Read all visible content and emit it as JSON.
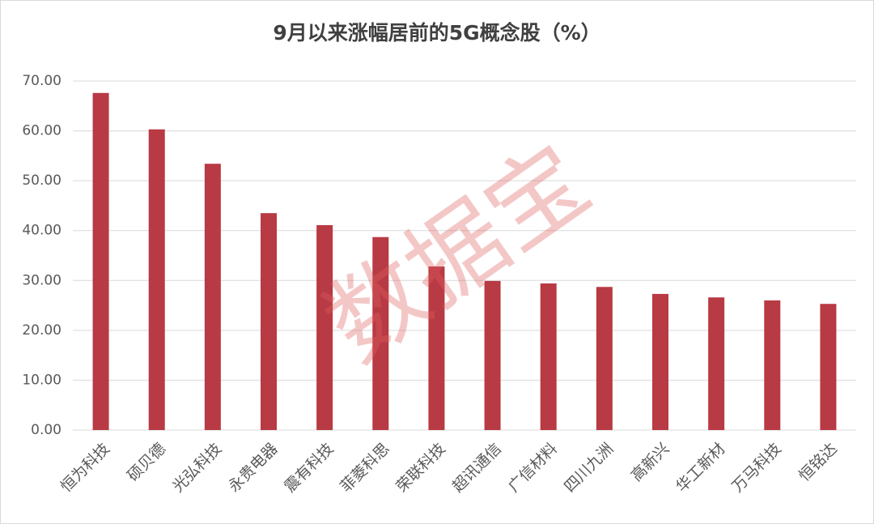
{
  "chart_data": {
    "type": "bar",
    "title": "9月以来涨幅居前的5G概念股（%）",
    "watermark": "数据宝",
    "categories": [
      "恒为科技",
      "硕贝德",
      "光弘科技",
      "永贵电器",
      "震有科技",
      "菲菱科思",
      "荣联科技",
      "超讯通信",
      "广信材料",
      "四川九洲",
      "高新兴",
      "华工新材",
      "万马科技",
      "恒铭达"
    ],
    "values": [
      67.6,
      60.3,
      53.4,
      43.5,
      41.1,
      38.7,
      32.8,
      29.9,
      29.4,
      28.7,
      27.3,
      26.6,
      26.0,
      25.3
    ],
    "color": "#b83a44",
    "ylim": [
      0,
      70
    ],
    "yticks": [
      {
        "value": 0,
        "label": "0.00"
      },
      {
        "value": 10,
        "label": "10.00"
      },
      {
        "value": 20,
        "label": "20.00"
      },
      {
        "value": 30,
        "label": "30.00"
      },
      {
        "value": 40,
        "label": "40.00"
      },
      {
        "value": 50,
        "label": "50.00"
      },
      {
        "value": 60,
        "label": "60.00"
      },
      {
        "value": 70,
        "label": "70.00"
      }
    ],
    "grid": true
  }
}
